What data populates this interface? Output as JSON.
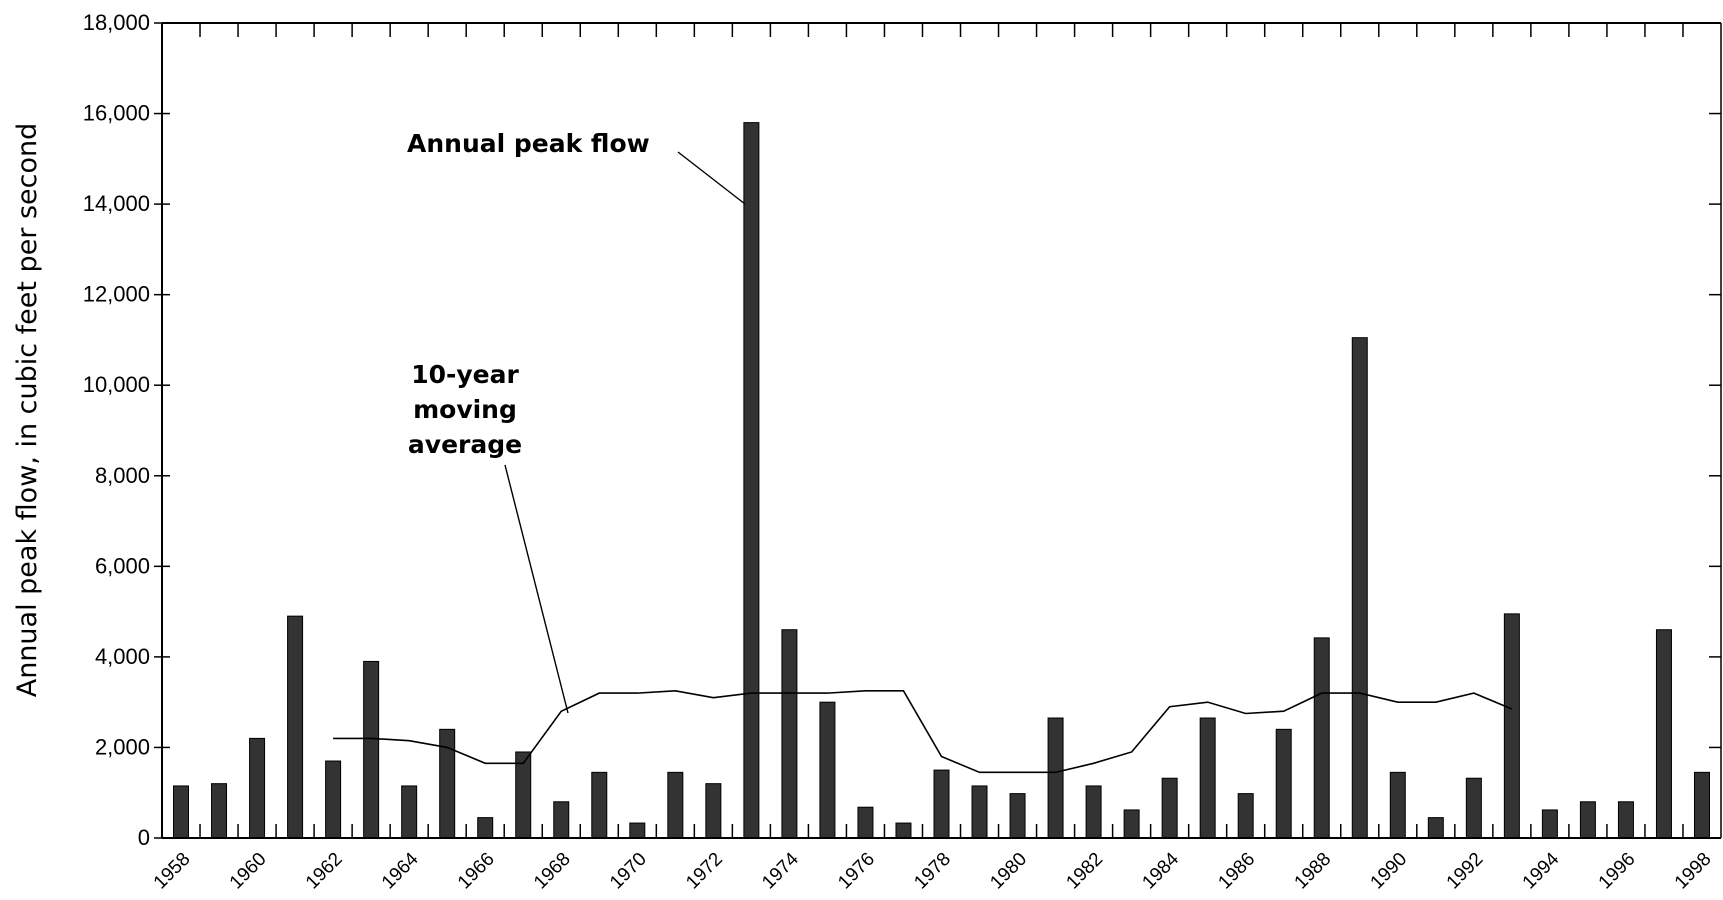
{
  "chart_data": {
    "type": "bar",
    "ylabel": "Annual peak flow, in cubic feet per second",
    "ylim": [
      0,
      18000
    ],
    "yticks": [
      0,
      2000,
      4000,
      6000,
      8000,
      10000,
      12000,
      14000,
      16000,
      18000
    ],
    "ytick_labels": [
      "0",
      "2,000",
      "4,000",
      "6,000",
      "8,000",
      "10,000",
      "12,000",
      "14,000",
      "16,000",
      "18,000"
    ],
    "xlim": [
      1957.5,
      1998.5
    ],
    "xtick_labels": [
      "1958",
      "1960",
      "1962",
      "1964",
      "1966",
      "1968",
      "1970",
      "1972",
      "1974",
      "1976",
      "1978",
      "1980",
      "1982",
      "1984",
      "1986",
      "1988",
      "1990",
      "1992",
      "1994",
      "1996",
      "1998"
    ],
    "grid": false,
    "bar_color": "#333333",
    "series": [
      {
        "name": "Annual peak flow",
        "x": [
          1958,
          1959,
          1960,
          1961,
          1962,
          1963,
          1964,
          1965,
          1966,
          1967,
          1968,
          1969,
          1970,
          1971,
          1972,
          1973,
          1974,
          1975,
          1976,
          1977,
          1978,
          1979,
          1980,
          1981,
          1982,
          1983,
          1984,
          1985,
          1986,
          1987,
          1988,
          1989,
          1990,
          1991,
          1992,
          1993,
          1994,
          1995,
          1996,
          1997,
          1998
        ],
        "values": [
          1150,
          1200,
          2200,
          4900,
          1700,
          3900,
          1150,
          2400,
          450,
          1900,
          800,
          1450,
          330,
          1450,
          1200,
          15800,
          4600,
          3000,
          680,
          330,
          1500,
          1150,
          980,
          2650,
          1150,
          620,
          1320,
          2650,
          980,
          2400,
          4420,
          11050,
          1450,
          450,
          1320,
          4950,
          620,
          800,
          800,
          4600,
          1450
        ]
      },
      {
        "name": "10-year moving average",
        "type": "line",
        "x": [
          1962,
          1963,
          1964,
          1965,
          1966,
          1967,
          1968,
          1969,
          1970,
          1971,
          1972,
          1973,
          1974,
          1975,
          1976,
          1977,
          1978,
          1979,
          1980,
          1981,
          1982,
          1983,
          1984,
          1985,
          1986,
          1987,
          1988,
          1989,
          1990,
          1991,
          1992,
          1993
        ],
        "values": [
          2200,
          2200,
          2150,
          2000,
          1650,
          1650,
          2800,
          3200,
          3200,
          3250,
          3100,
          3200,
          3200,
          3200,
          3250,
          3250,
          1800,
          1450,
          1450,
          1450,
          1650,
          1900,
          2900,
          3000,
          2750,
          2800,
          3200,
          3200,
          3000,
          3000,
          3200,
          2850
        ]
      }
    ],
    "annotations": {
      "peak_label": "Annual peak flow",
      "avg_label_lines": [
        "10-year",
        "moving",
        "average"
      ]
    }
  }
}
